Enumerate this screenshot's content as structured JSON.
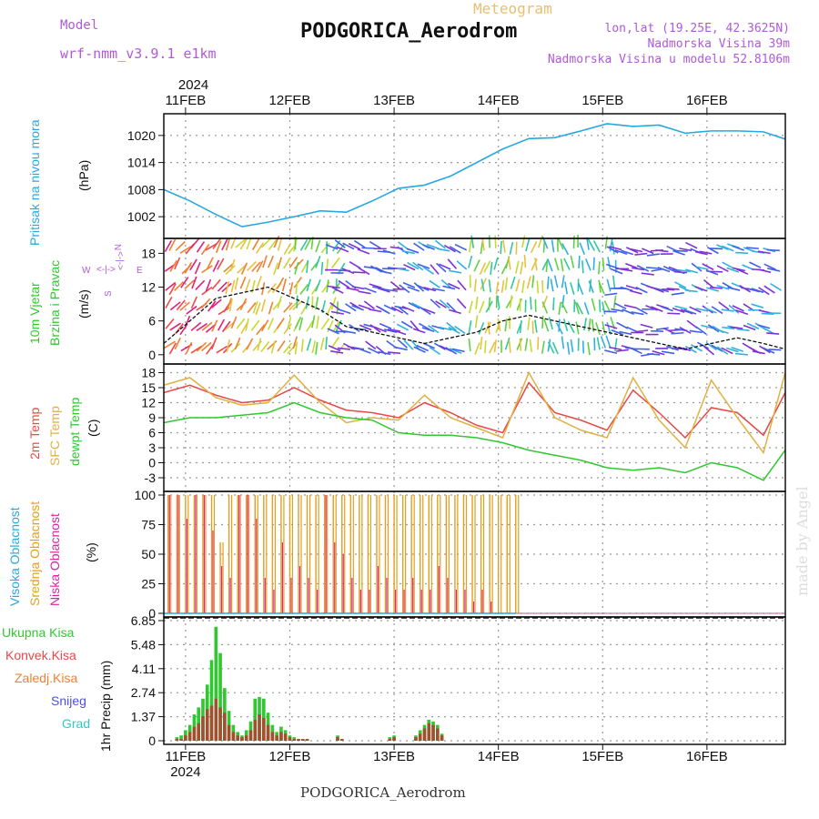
{
  "header": {
    "model_label": "Model",
    "model_name": "wrf-nmm_v3.9.1 e1km",
    "title": "PODGORICA_Aerodrom",
    "meteogram": "Meteogram",
    "lonlat": "lon,lat (19.25E, 42.3625N)",
    "elevation": "Nadmorska Visina 39m",
    "model_elevation": "Nadmorska Visina u modelu 52.8106m"
  },
  "footer": {
    "station": "PODGORICA_Aerodrom",
    "watermark": "made by Angel"
  },
  "colors": {
    "pressure": "#29a8e0",
    "temp2m": "#e84848",
    "sfctemp": "#e0b040",
    "dewpt": "#30c830",
    "wind_label": "#30c830",
    "wind_axis": "#b05ad8",
    "cloud_high": "#29a8e0",
    "cloud_mid": "#e0a020",
    "cloud_low": "#e020a0",
    "precip_total": "#30c830",
    "precip_conv": "#e84848",
    "precip_frz": "#f08030",
    "precip_snow": "#5050e0",
    "precip_grad": "#30c8c8"
  },
  "time_axis": {
    "year_top": "2024",
    "year_bottom": "2024",
    "days": [
      "11FEB",
      "12FEB",
      "13FEB",
      "14FEB",
      "15FEB",
      "16FEB"
    ],
    "start_hours_before_first_day": 5,
    "total_hours": 143
  },
  "chart_data": [
    {
      "type": "line",
      "panel": "pressure",
      "ylabel": "Pritisak na nivou mora",
      "unit": "(hPa)",
      "yticks": [
        "1002",
        "1008",
        "1014",
        "1020"
      ],
      "ylim": [
        998,
        1024
      ],
      "hours": [
        0,
        6,
        12,
        18,
        24,
        30,
        36,
        42,
        48,
        54,
        60,
        66,
        72,
        78,
        84,
        90,
        96,
        102,
        108,
        114,
        120,
        126,
        132,
        138,
        143
      ],
      "values": [
        1008,
        1005.5,
        1002.5,
        999.8,
        1000.8,
        1002,
        1003.3,
        1003,
        1005.5,
        1008.3,
        1009,
        1011,
        1014,
        1017,
        1019.3,
        1019.5,
        1021,
        1022.6,
        1022,
        1022.3,
        1020.5,
        1021,
        1021,
        1020.8,
        1019.2
      ]
    },
    {
      "type": "line",
      "panel": "wind",
      "ylabel_1": "10m Vjetar",
      "ylabel_2": "Brzina i Pravac",
      "unit": "(m/s)",
      "compass": "N",
      "compass_w": "W",
      "compass_e": "E",
      "compass_s": "S",
      "compass_arrows": "<-|->",
      "yticks": [
        "0",
        "6",
        "12",
        "18"
      ],
      "ylim": [
        -1,
        20
      ],
      "hours": [
        0,
        6,
        12,
        18,
        24,
        30,
        36,
        42,
        48,
        54,
        60,
        66,
        72,
        78,
        84,
        90,
        96,
        102,
        108,
        114,
        120,
        126,
        132,
        138,
        143
      ],
      "values": [
        2,
        6,
        10,
        11,
        12,
        10,
        8,
        5,
        4,
        3,
        2,
        3,
        4,
        6,
        7,
        6,
        5,
        4,
        3,
        2,
        1,
        2,
        3,
        2,
        1
      ]
    },
    {
      "type": "line",
      "panel": "temperature",
      "label_2m": "2m Temp",
      "label_sfc": "SFC Temp",
      "label_dew": "dewpt Temp",
      "unit": "(C)",
      "yticks": [
        "-3",
        "0",
        "3",
        "6",
        "9",
        "12",
        "15",
        "18"
      ],
      "ylim": [
        -5,
        19
      ],
      "hours": [
        0,
        6,
        12,
        18,
        24,
        30,
        36,
        42,
        48,
        54,
        60,
        66,
        72,
        78,
        84,
        90,
        96,
        102,
        108,
        114,
        120,
        126,
        132,
        138,
        143
      ],
      "series": [
        {
          "name": "2m Temp",
          "key": "temp2m",
          "values": [
            14,
            15.5,
            13.5,
            12,
            12.5,
            15,
            12.5,
            10.5,
            10,
            9,
            12,
            10,
            7.5,
            6,
            16,
            10,
            8.5,
            6.5,
            14.5,
            10,
            5,
            11,
            10,
            5.5,
            14
          ]
        },
        {
          "name": "SFC Temp",
          "key": "sfctemp",
          "values": [
            15.5,
            17,
            13,
            11.5,
            12,
            17.5,
            12,
            8,
            9,
            8.5,
            13.5,
            9,
            7,
            5,
            18,
            9,
            6.5,
            5,
            17,
            8.5,
            3,
            16.5,
            9,
            2,
            18
          ]
        },
        {
          "name": "dewpt Temp",
          "key": "dewpt",
          "values": [
            8,
            9,
            9,
            9.5,
            10,
            12,
            10,
            9,
            8.5,
            6,
            5.5,
            5.5,
            5,
            4,
            2.5,
            1.5,
            0.5,
            -1,
            -1.5,
            -1,
            -2,
            0,
            -1,
            -3.5,
            2.5
          ]
        }
      ]
    },
    {
      "type": "bar",
      "panel": "clouds",
      "label_high": "Visoka Oblacnost",
      "label_mid": "Srednja Oblacnost",
      "label_low": "Niska Oblacnost",
      "unit": "(%)",
      "yticks": [
        "0",
        "25",
        "50",
        "75",
        "100"
      ],
      "ylim": [
        0,
        100
      ],
      "hours_with_cloud_until": 81,
      "mid_values": [
        100,
        100,
        100,
        100,
        100,
        100,
        60,
        100,
        100,
        100,
        100,
        100,
        100,
        100,
        100,
        100,
        100,
        100,
        100,
        100,
        100,
        100,
        100,
        100,
        100,
        100,
        100,
        100,
        100,
        100,
        100,
        100,
        100,
        100,
        100,
        100,
        100,
        100,
        100,
        100,
        100
      ],
      "low_values": [
        100,
        100,
        80,
        100,
        100,
        70,
        40,
        30,
        100,
        100,
        80,
        30,
        20,
        60,
        30,
        40,
        30,
        20,
        100,
        60,
        50,
        30,
        20,
        20,
        40,
        30,
        20,
        20,
        30,
        20,
        20,
        40,
        30,
        20,
        20,
        10,
        20,
        10,
        0,
        0,
        0
      ]
    },
    {
      "type": "bar",
      "panel": "precip",
      "label_total": "Ukupna Kisa",
      "label_conv": "Konvek.Kisa",
      "label_frz": "Zaledj.Kisa",
      "label_snow": "Snijeg",
      "label_grad": "Grad",
      "ylabel": "1hr Precip (mm)",
      "yticks": [
        "0",
        "1.37",
        "2.74",
        "4.11",
        "5.48",
        "6.85"
      ],
      "ylim": [
        0,
        6.85
      ],
      "hours": [
        3,
        4,
        5,
        6,
        7,
        8,
        9,
        10,
        11,
        12,
        13,
        14,
        15,
        16,
        17,
        18,
        19,
        20,
        21,
        22,
        23,
        24,
        25,
        26,
        27,
        28,
        29,
        30,
        31,
        32,
        33,
        40,
        41,
        52,
        53,
        58,
        59,
        60,
        61,
        62,
        63,
        64
      ],
      "total": [
        0.2,
        0.3,
        0.6,
        0.9,
        1.5,
        1.9,
        2.4,
        3.2,
        4.6,
        6.5,
        5.0,
        3.0,
        1.7,
        0.9,
        0.5,
        0.3,
        0.6,
        1.1,
        2.4,
        2.5,
        2.4,
        1.6,
        0.9,
        0.5,
        0.8,
        0.6,
        0.3,
        0.2,
        0.1,
        0.1,
        0.1,
        0.3,
        0.1,
        0.2,
        0.3,
        0.3,
        0.6,
        0.9,
        1.2,
        1.1,
        0.9,
        0.4
      ],
      "conv": [
        0.1,
        0.1,
        0.3,
        0.5,
        0.8,
        1.0,
        1.4,
        1.8,
        2.0,
        2.4,
        1.9,
        1.6,
        0.9,
        0.5,
        0.3,
        0.2,
        0.3,
        0.6,
        1.2,
        1.5,
        1.3,
        0.9,
        0.5,
        0.3,
        0.5,
        0.4,
        0.2,
        0.1,
        0.1,
        0.1,
        0.1,
        0.2,
        0.1,
        0.1,
        0.2,
        0.2,
        0.4,
        0.7,
        1.0,
        0.9,
        0.7,
        0.3
      ]
    }
  ]
}
